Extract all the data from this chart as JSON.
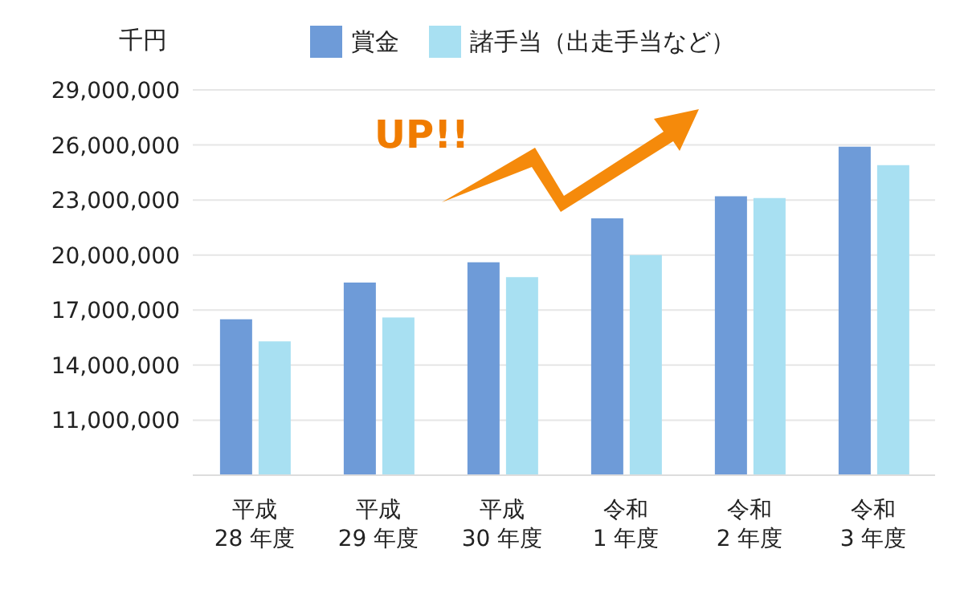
{
  "chart_data": {
    "type": "bar",
    "ylabel": "千円",
    "annotations": [
      "UP!!"
    ],
    "categories": [
      "平成\n28 年度",
      "平成\n29 年度",
      "平成\n30 年度",
      "令和\n1 年度",
      "令和\n2 年度",
      "令和\n3 年度"
    ],
    "series": [
      {
        "name": "賞金",
        "color": "#6e9bd8",
        "values": [
          16500000,
          18500000,
          19600000,
          22000000,
          23200000,
          25900000
        ]
      },
      {
        "name": "諸手当（出走手当など）",
        "color": "#a8e0f2",
        "values": [
          15300000,
          16600000,
          18800000,
          20000000,
          23100000,
          24900000
        ]
      }
    ],
    "ylim": [
      8000000,
      29000000
    ],
    "yticks": [
      {
        "value": 11000000,
        "label": "11,000,000"
      },
      {
        "value": 14000000,
        "label": "14,000,000"
      },
      {
        "value": 17000000,
        "label": "17,000,000"
      },
      {
        "value": 20000000,
        "label": "20,000,000"
      },
      {
        "value": 23000000,
        "label": "23,000,000"
      },
      {
        "value": 26000000,
        "label": "26,000,000"
      },
      {
        "value": 29000000,
        "label": "29,000,000"
      }
    ],
    "grid": "y",
    "legend": "top"
  }
}
